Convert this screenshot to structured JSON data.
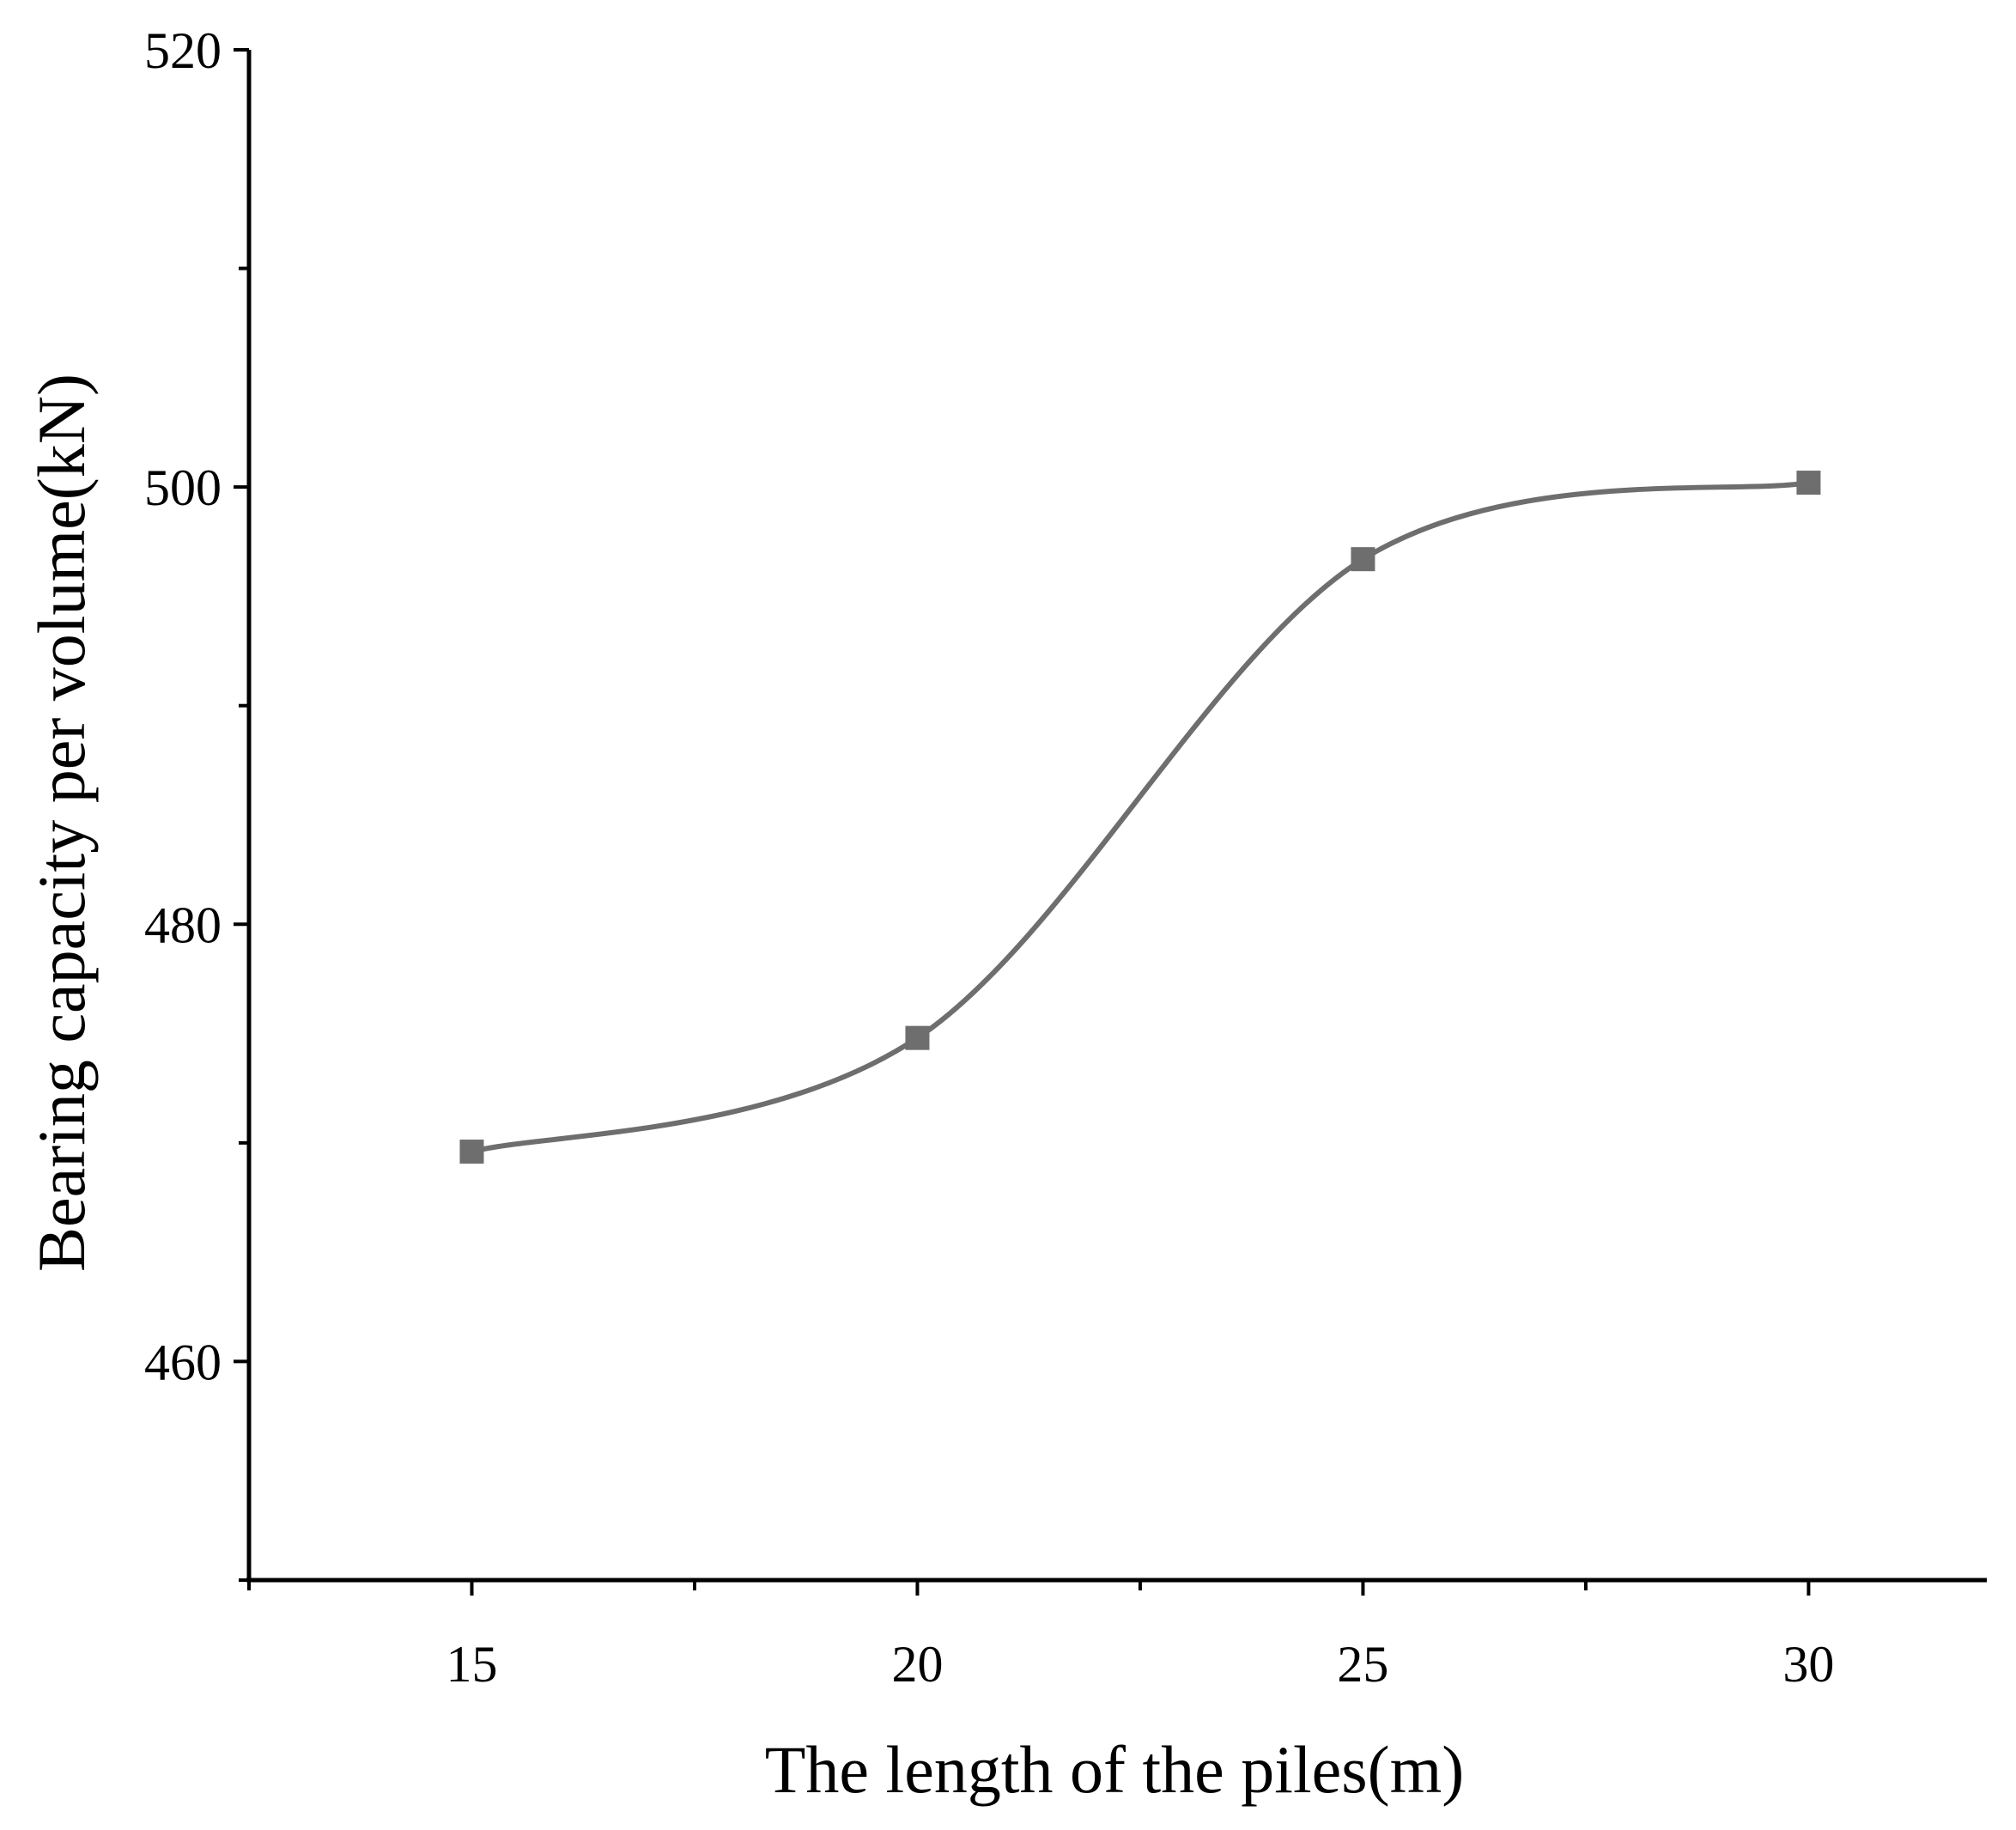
{
  "chart_data": {
    "type": "line",
    "title": "",
    "xlabel": "The length of the piles(m)",
    "ylabel": "Bearing capacity per volume(kN)",
    "x_ticks": [
      15,
      20,
      25,
      30
    ],
    "y_ticks": [
      460,
      480,
      500,
      520
    ],
    "xlim": [
      12.5,
      32
    ],
    "ylim": [
      450,
      520
    ],
    "grid": false,
    "legend": "none",
    "smooth": true,
    "marker": "square",
    "series": [
      {
        "name": "",
        "color": "#6e6e6e",
        "x": [
          15,
          20,
          25,
          30
        ],
        "y": [
          469.6,
          474.8,
          496.7,
          500.2
        ]
      }
    ]
  }
}
